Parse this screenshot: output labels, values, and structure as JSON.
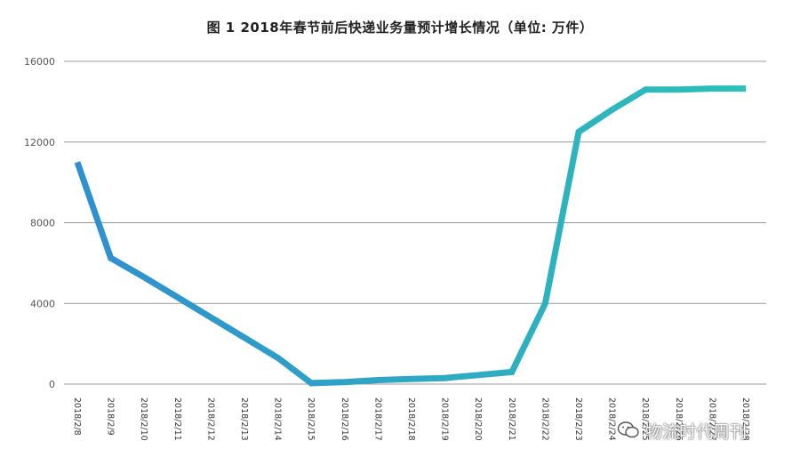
{
  "chart_data": {
    "type": "line",
    "title": "图 1  2018年春节前后快递业务量预计增长情况（单位: 万件）",
    "xlabel": "",
    "ylabel": "",
    "categories": [
      "2018/2/8",
      "2018/2/9",
      "2018/2/10",
      "2018/2/11",
      "2018/2/12",
      "2018/2/13",
      "2018/2/14",
      "2018/2/15",
      "2018/2/16",
      "2018/2/17",
      "2018/2/18",
      "2018/2/19",
      "2018/2/20",
      "2018/2/21",
      "2018/2/22",
      "2018/2/23",
      "2018/2/24",
      "2018/2/25",
      "2018/2/26",
      "2018/2/27",
      "2018/2/28"
    ],
    "series": [
      {
        "values": [
          11000,
          6250,
          5300,
          4300,
          3300,
          2300,
          1300,
          50,
          100,
          200,
          250,
          300,
          450,
          600,
          4000,
          12500,
          13600,
          14600,
          14600,
          14650,
          14650
        ],
        "color_start": "#2f8fd0",
        "color_end": "#2cc0b8"
      }
    ],
    "ylim": [
      0,
      16000
    ],
    "yticks": [
      "0",
      "4000",
      "8000",
      "12000",
      "16000"
    ],
    "grid": true,
    "legend": "none"
  },
  "watermark": {
    "text": "物流时代周刊",
    "icon": "wechat-icon"
  }
}
